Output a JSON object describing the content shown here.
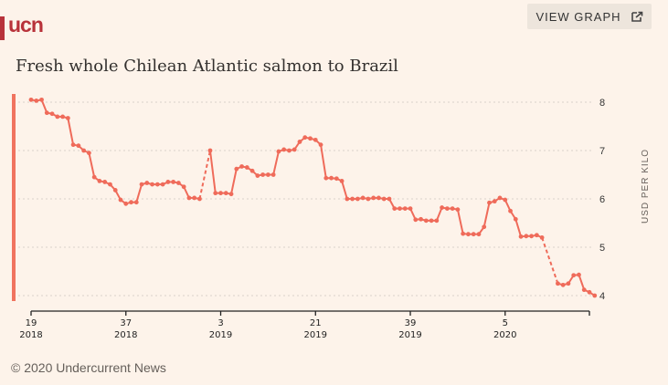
{
  "header": {
    "logo": "ucn",
    "view_graph_label": "VIEW GRAPH",
    "view_graph_icon": "external-share-icon"
  },
  "footer": {
    "copyright": "© 2020 Undercurrent News"
  },
  "colors": {
    "line": "#ef6b5a",
    "brand": "#b8323a",
    "background": "#fdf3ea",
    "grid": "#d9d2cb"
  },
  "chart_data": {
    "type": "line",
    "title": "Fresh whole Chilean Atlantic salmon to Brazil",
    "xlabel": "",
    "ylabel": "USD PER KILO",
    "ylim": [
      4,
      8
    ],
    "yticks": [
      8,
      7,
      6,
      5,
      4
    ],
    "grid": true,
    "x_unit": "week index since week 19 2018",
    "xticks": [
      {
        "week_index": 0,
        "week": "19",
        "year": "2018"
      },
      {
        "week_index": 18,
        "week": "37",
        "year": "2018"
      },
      {
        "week_index": 36,
        "week": "3",
        "year": "2019"
      },
      {
        "week_index": 54,
        "week": "21",
        "year": "2019"
      },
      {
        "week_index": 72,
        "week": "39",
        "year": "2019"
      },
      {
        "week_index": 90,
        "week": "5",
        "year": "2020"
      }
    ],
    "x_end": 106,
    "series": [
      {
        "name": "Fresh whole Chilean Atlantic salmon to Brazil",
        "values": [
          8.05,
          8.03,
          8.05,
          7.78,
          7.76,
          7.7,
          7.7,
          7.67,
          7.12,
          7.1,
          7.0,
          6.95,
          6.45,
          6.37,
          6.35,
          6.3,
          6.18,
          5.98,
          5.9,
          5.93,
          5.93,
          6.3,
          6.33,
          6.3,
          6.3,
          6.3,
          6.35,
          6.35,
          6.33,
          6.25,
          6.02,
          6.02,
          6.0,
          null,
          7.0,
          6.12,
          6.12,
          6.12,
          6.1,
          6.62,
          6.67,
          6.65,
          6.58,
          6.48,
          6.5,
          6.5,
          6.5,
          6.98,
          7.02,
          7.0,
          7.02,
          7.18,
          7.27,
          7.25,
          7.22,
          7.12,
          6.43,
          6.43,
          6.42,
          6.37,
          6.0,
          6.0,
          6.0,
          6.02,
          6.0,
          6.02,
          6.02,
          6.0,
          6.0,
          5.8,
          5.8,
          5.8,
          5.8,
          5.57,
          5.58,
          5.55,
          5.55,
          5.55,
          5.82,
          5.8,
          5.8,
          5.78,
          5.28,
          5.27,
          5.27,
          5.27,
          5.42,
          5.92,
          5.95,
          6.02,
          5.98,
          5.75,
          5.58,
          5.22,
          5.23,
          5.23,
          5.25,
          5.2,
          null,
          null,
          4.25,
          4.22,
          4.25,
          4.42,
          4.43,
          4.12,
          4.07,
          4.0
        ]
      }
    ]
  }
}
